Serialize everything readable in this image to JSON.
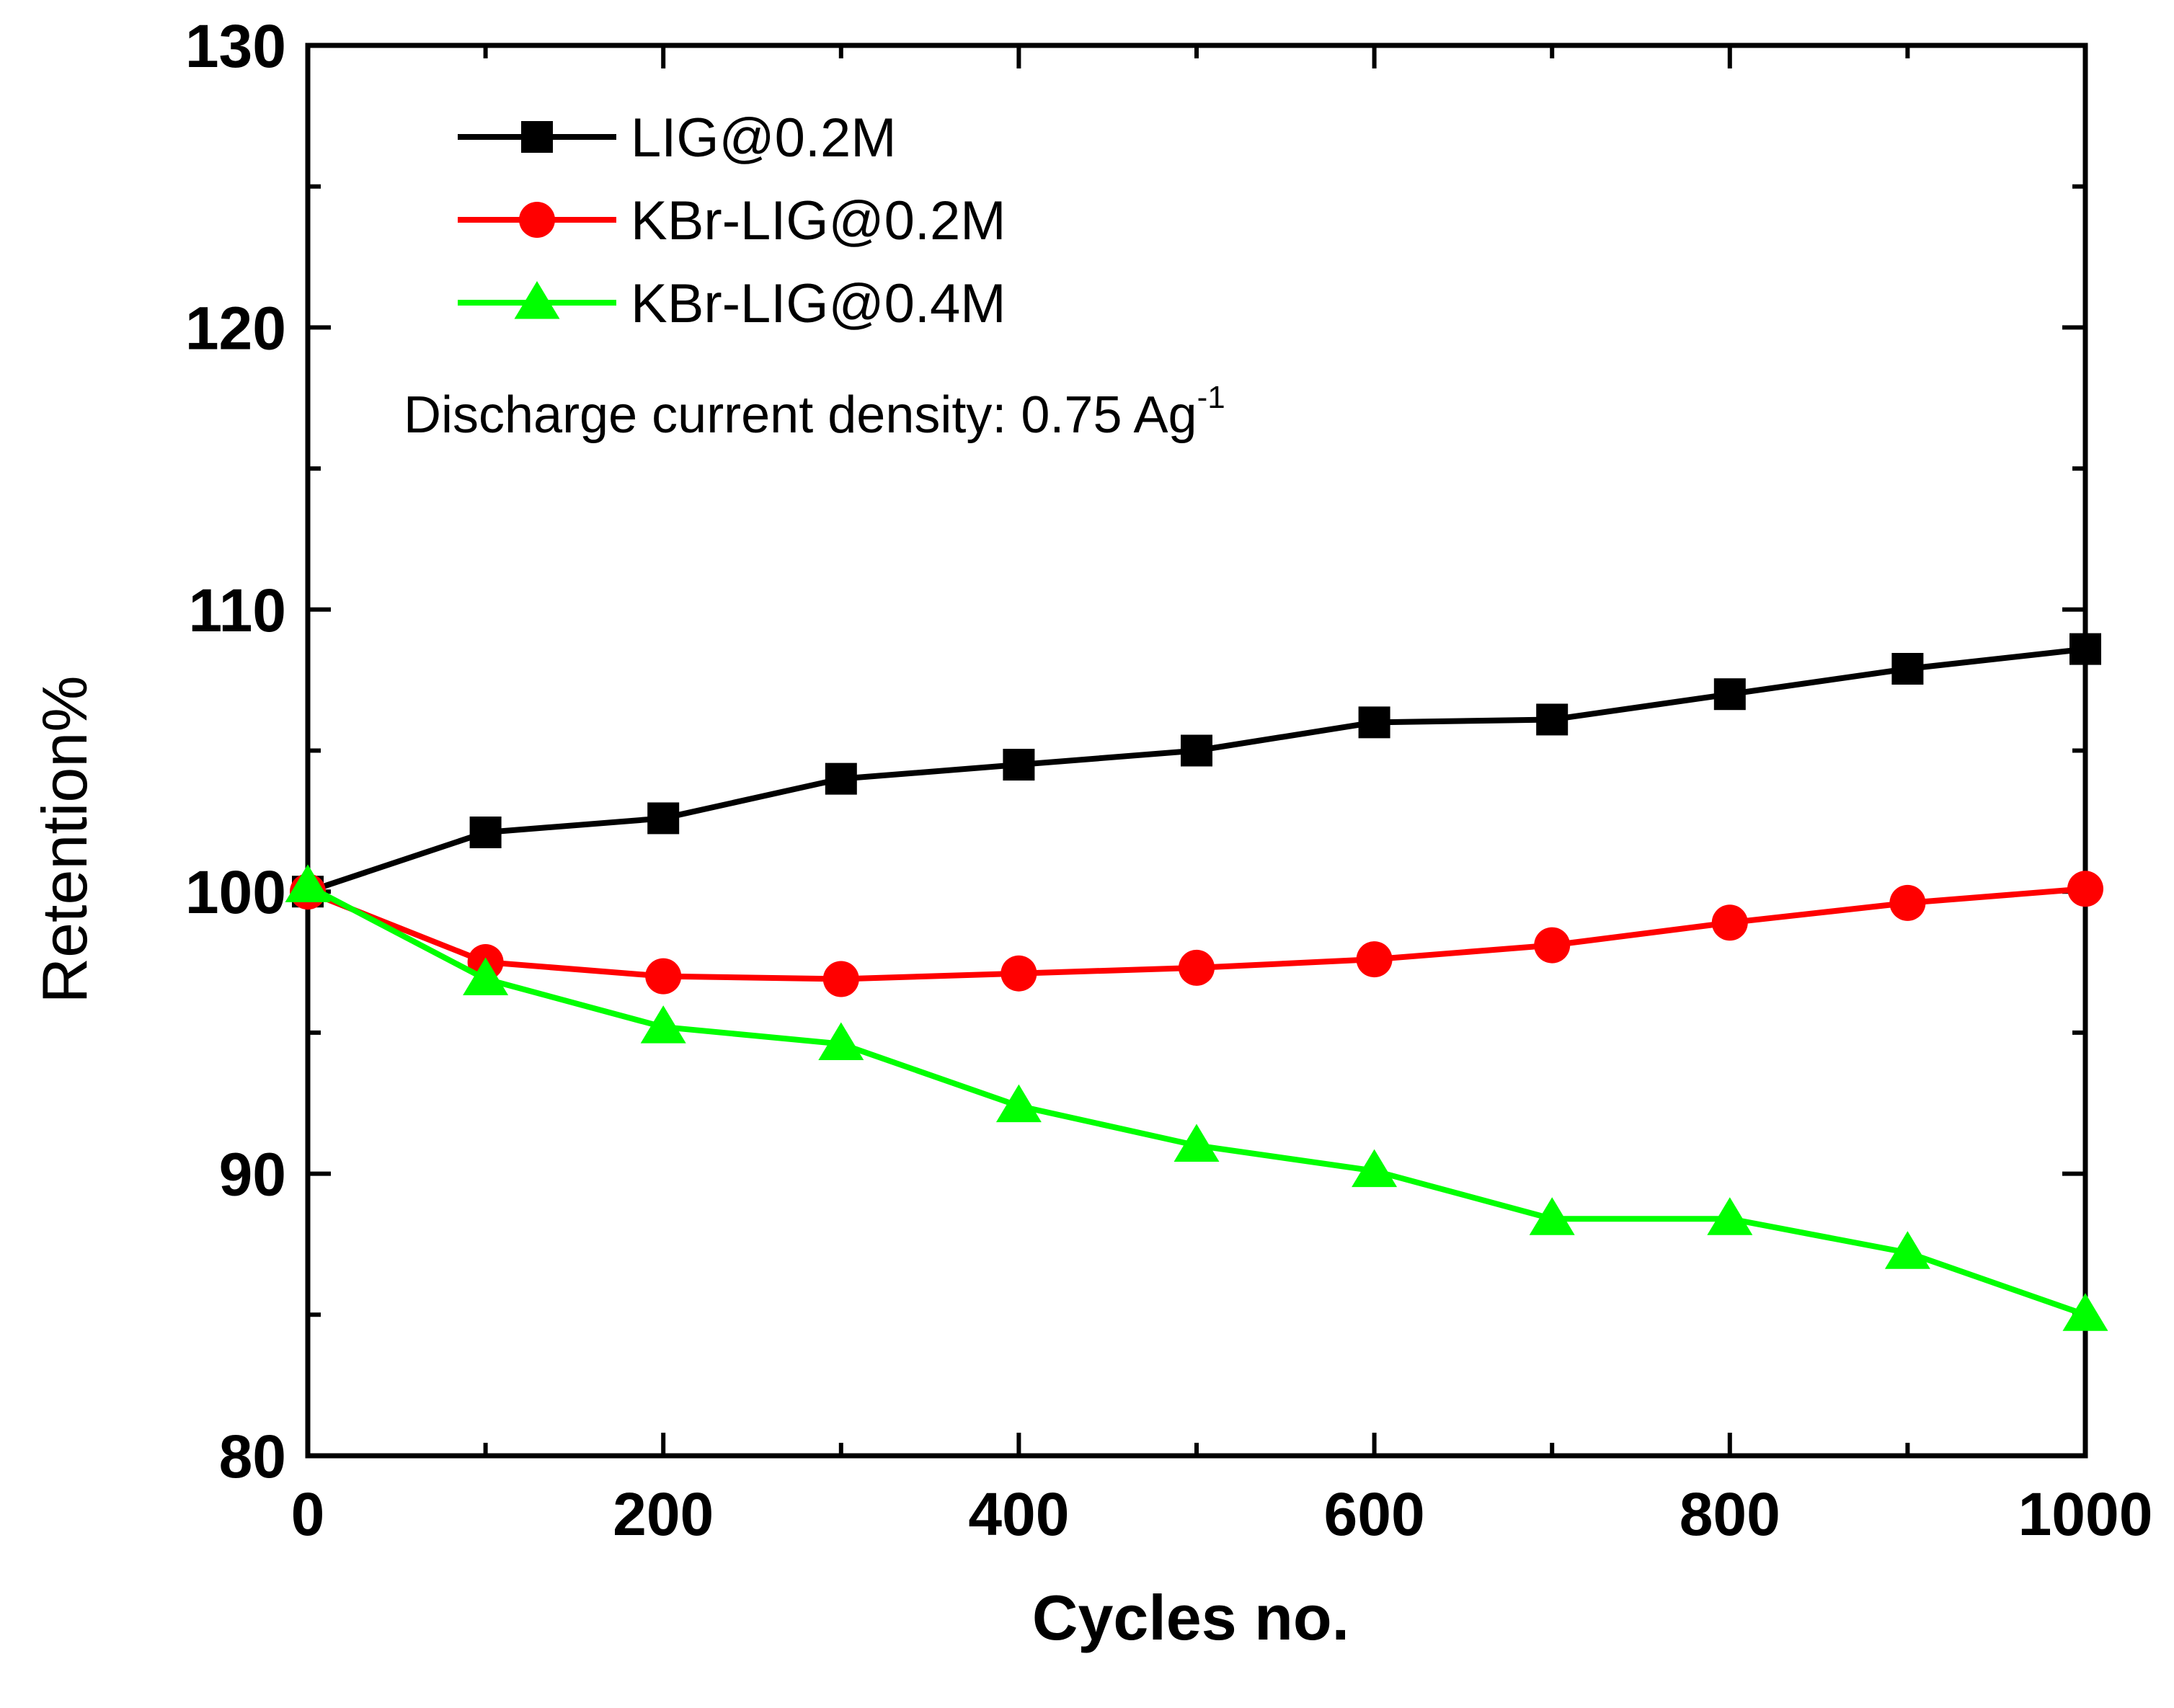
{
  "chart_data": {
    "type": "line",
    "title": "",
    "xlabel": "Cycles no.",
    "ylabel": "Retention%",
    "xlim": [
      0,
      1000
    ],
    "ylim": [
      80,
      130
    ],
    "x_ticks": [
      0,
      200,
      400,
      600,
      800,
      1000
    ],
    "x_tick_labels": [
      "0",
      "200",
      "400",
      "600",
      "800",
      "1000"
    ],
    "y_ticks": [
      80,
      90,
      100,
      110,
      120,
      130
    ],
    "y_tick_labels": [
      "80",
      "90",
      "100",
      "110",
      "120",
      "130"
    ],
    "grid": false,
    "legend_position": "top-left",
    "x": [
      0,
      100,
      200,
      300,
      400,
      500,
      600,
      700,
      800,
      900,
      1000
    ],
    "series": [
      {
        "name": "LIG@0.2M",
        "color": "#000000",
        "marker": "square",
        "values": [
          100.0,
          102.1,
          102.6,
          104.0,
          104.5,
          105.0,
          106.0,
          106.1,
          107.0,
          107.9,
          108.6
        ]
      },
      {
        "name": "KBr-LIG@0.2M",
        "color": "#ff0000",
        "marker": "circle",
        "values": [
          100.0,
          97.5,
          97.0,
          96.9,
          97.1,
          97.3,
          97.6,
          98.1,
          98.9,
          99.6,
          100.1
        ]
      },
      {
        "name": "KBr-LIG@0.4M",
        "color": "#00ff00",
        "marker": "triangle",
        "values": [
          100.2,
          96.9,
          95.2,
          94.6,
          92.4,
          91.0,
          90.1,
          88.4,
          88.4,
          87.2,
          85.0
        ]
      }
    ],
    "annotation": {
      "text": "Discharge current density: 0.75 Ag",
      "superscript": "-1"
    }
  }
}
